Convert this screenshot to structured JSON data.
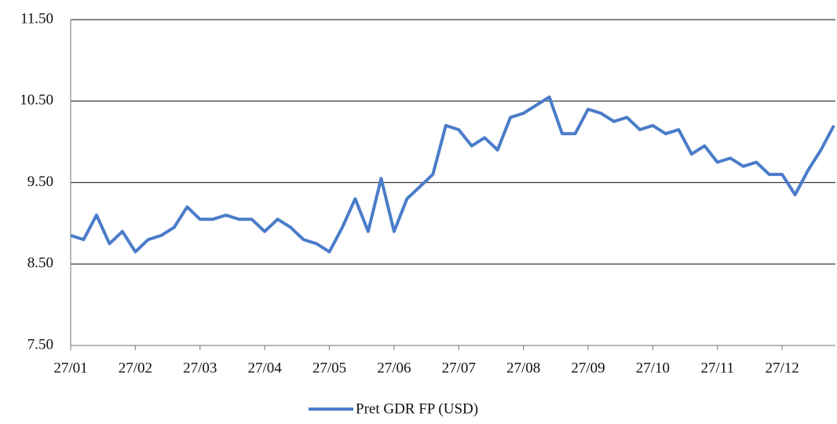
{
  "chart_data": {
    "type": "line",
    "categories": [
      "27/01",
      null,
      null,
      null,
      null,
      "27/02",
      null,
      null,
      null,
      null,
      "27/03",
      null,
      null,
      null,
      null,
      "27/04",
      null,
      null,
      null,
      null,
      "27/05",
      null,
      null,
      null,
      null,
      "27/06",
      null,
      null,
      null,
      null,
      "27/07",
      null,
      null,
      null,
      null,
      "27/08",
      null,
      null,
      null,
      null,
      "27/09",
      null,
      null,
      null,
      null,
      "27/10",
      null,
      null,
      null,
      null,
      "27/11",
      null,
      null,
      null,
      null,
      "27/12",
      null,
      null,
      null,
      null
    ],
    "series": [
      {
        "name": "Pret GDR FP (USD)",
        "color": "#4a7cc9",
        "values": [
          8.85,
          8.8,
          9.1,
          8.75,
          8.9,
          8.65,
          8.8,
          8.85,
          8.95,
          9.2,
          9.05,
          9.05,
          9.1,
          9.05,
          9.05,
          8.9,
          9.05,
          8.95,
          8.8,
          8.75,
          8.65,
          8.95,
          9.3,
          8.9,
          9.55,
          8.9,
          9.3,
          9.45,
          9.6,
          10.2,
          10.15,
          9.95,
          10.05,
          9.9,
          10.3,
          10.35,
          10.45,
          10.55,
          10.1,
          10.1,
          10.4,
          10.35,
          10.25,
          10.3,
          10.15,
          10.2,
          10.1,
          10.15,
          9.85,
          9.95,
          9.75,
          9.8,
          9.7,
          9.75,
          9.6,
          9.6,
          9.35,
          9.65,
          9.9,
          10.2
        ]
      }
    ],
    "ylim": [
      7.5,
      11.5
    ],
    "yticks": [
      {
        "value": 7.5,
        "label": "7.50"
      },
      {
        "value": 8.5,
        "label": "8.50"
      },
      {
        "value": 9.5,
        "label": "9.50"
      },
      {
        "value": 10.5,
        "label": "10.50"
      },
      {
        "value": 11.5,
        "label": "11.50"
      }
    ],
    "grid": true,
    "legend": "bottom"
  }
}
